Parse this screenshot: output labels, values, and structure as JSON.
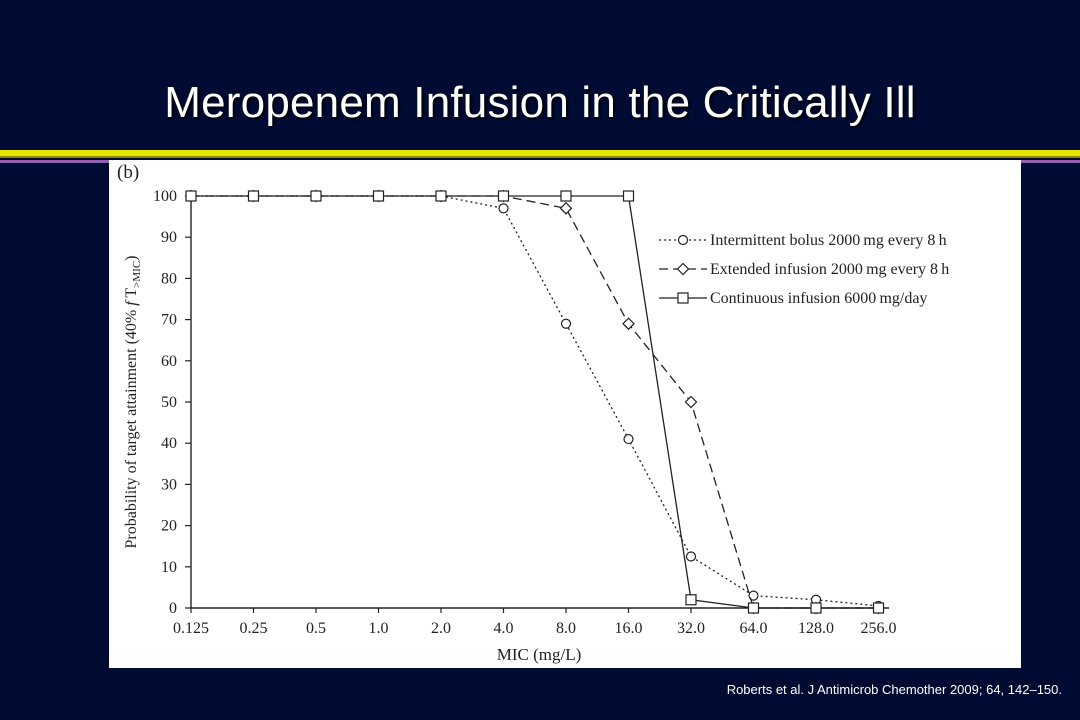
{
  "slide": {
    "title": "Meropenem Infusion in the Critically Ill",
    "citation": "Roberts et al. J Antimicrob Chemother 2009; 64, 142–150."
  },
  "colors": {
    "background": "#000b33",
    "rule_yellow": "#e6e600",
    "rule_purple": "#a05ab4",
    "text": "#ffffff"
  },
  "chart_data": {
    "type": "line",
    "panel_label": "(b)",
    "xlabel": "MIC (mg/L)",
    "ylabel_main": "Probability of target attainment (40% ",
    "ylabel_f": "f",
    "ylabel_T": " T",
    "ylabel_sub": ">MIC",
    "ylabel_close": ")",
    "categories": [
      "0.125",
      "0.25",
      "0.5",
      "1.0",
      "2.0",
      "4.0",
      "8.0",
      "16.0",
      "32.0",
      "64.0",
      "128.0",
      "256.0"
    ],
    "yticks": [
      "0",
      "10",
      "20",
      "30",
      "40",
      "50",
      "60",
      "70",
      "80",
      "90",
      "100"
    ],
    "ylim": [
      0,
      100
    ],
    "grid": false,
    "legend_position": "top-right",
    "series": [
      {
        "name": "Intermittent bolus 2000 mg every 8 h",
        "marker": "circle",
        "dash": "dotted",
        "values": [
          100,
          100,
          100,
          100,
          100,
          97,
          69,
          41,
          12.5,
          3,
          2,
          0.5
        ]
      },
      {
        "name": "Extended infusion 2000 mg every 8 h",
        "marker": "diamond",
        "dash": "dashed",
        "values": [
          100,
          100,
          100,
          100,
          100,
          100,
          97,
          69,
          50,
          0,
          0,
          0
        ]
      },
      {
        "name": "Continuous infusion 6000 mg/day",
        "marker": "square",
        "dash": "solid",
        "values": [
          100,
          100,
          100,
          100,
          100,
          100,
          100,
          100,
          2,
          0,
          0,
          0
        ]
      }
    ]
  }
}
